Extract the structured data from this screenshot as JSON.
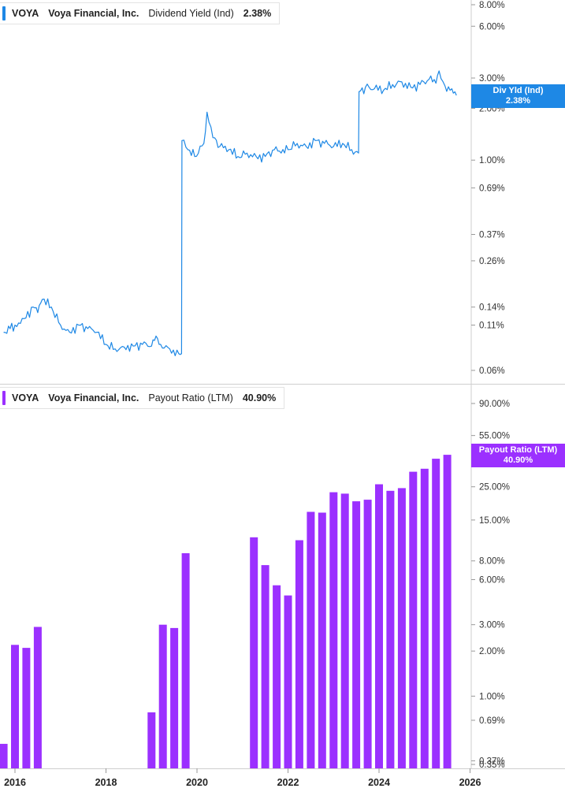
{
  "chart_data": [
    {
      "type": "line",
      "ticker": "VOYA",
      "company": "Voya Financial, Inc.",
      "metric": "Dividend Yield (Ind)",
      "current_value": "2.38%",
      "flag_label": "Div Yld (Ind)",
      "color": "#1e88e5",
      "y_scale": "log",
      "y_ticks": [
        "8.00%",
        "6.00%",
        "3.00%",
        "2.00%",
        "1.00%",
        "0.69%",
        "0.37%",
        "0.26%",
        "0.14%",
        "0.11%",
        "0.06%"
      ],
      "series": [
        {
          "x": [
            2015.75,
            2016.0,
            2016.2,
            2016.4,
            2016.5,
            2016.6,
            2016.8,
            2017.0,
            2017.2,
            2017.4,
            2017.6,
            2017.8,
            2018.0,
            2018.2,
            2018.4,
            2018.6,
            2018.8,
            2019.0,
            2019.1,
            2019.2,
            2019.4,
            2019.6,
            2019.66,
            2019.67,
            2019.8,
            2019.95,
            2020.15,
            2020.22,
            2020.35,
            2020.5,
            2020.7,
            2020.9,
            2021.1,
            2021.3,
            2021.5,
            2021.7,
            2021.85,
            2022.0,
            2022.2,
            2022.4,
            2022.6,
            2022.8,
            2023.0,
            2023.2,
            2023.4,
            2023.55,
            2023.56,
            2023.7,
            2023.9,
            2024.1,
            2024.3,
            2024.5,
            2024.7,
            2024.9,
            2025.1,
            2025.25,
            2025.32,
            2025.45,
            2025.6,
            2025.7
          ],
          "y": [
            0.1,
            0.11,
            0.12,
            0.14,
            0.13,
            0.155,
            0.14,
            0.11,
            0.1,
            0.11,
            0.105,
            0.1,
            0.085,
            0.08,
            0.082,
            0.083,
            0.085,
            0.083,
            0.095,
            0.085,
            0.08,
            0.075,
            0.075,
            1.3,
            1.15,
            1.05,
            1.25,
            1.9,
            1.35,
            1.2,
            1.15,
            1.05,
            1.1,
            1.05,
            1.05,
            1.15,
            1.1,
            1.15,
            1.25,
            1.2,
            1.3,
            1.25,
            1.2,
            1.25,
            1.15,
            1.1,
            2.5,
            2.65,
            2.6,
            2.55,
            2.75,
            2.85,
            2.65,
            2.75,
            2.95,
            2.8,
            3.3,
            2.7,
            2.6,
            2.38
          ]
        }
      ]
    },
    {
      "type": "bar",
      "ticker": "VOYA",
      "company": "Voya Financial, Inc.",
      "metric": "Payout Ratio (LTM)",
      "current_value": "40.90%",
      "flag_label": "Payout Ratio (LTM)",
      "color": "#9b30ff",
      "y_scale": "log",
      "y_ticks": [
        "90.00%",
        "55.00%",
        "25.00%",
        "15.00%",
        "8.00%",
        "6.00%",
        "3.00%",
        "2.00%",
        "1.00%",
        "0.69%",
        "0.37%",
        "0.35%"
      ],
      "x_ticks": [
        "2016",
        "2018",
        "2020",
        "2022",
        "2024",
        "2026"
      ],
      "bars": [
        {
          "x": 2015.75,
          "value": 0.48
        },
        {
          "x": 2016.0,
          "value": 2.2
        },
        {
          "x": 2016.25,
          "value": 2.1
        },
        {
          "x": 2016.5,
          "value": 2.9
        },
        {
          "x": 2019.0,
          "value": 0.78
        },
        {
          "x": 2019.25,
          "value": 3.0
        },
        {
          "x": 2019.5,
          "value": 2.85
        },
        {
          "x": 2019.75,
          "value": 9.0
        },
        {
          "x": 2021.25,
          "value": 11.5
        },
        {
          "x": 2021.5,
          "value": 7.5
        },
        {
          "x": 2021.75,
          "value": 5.5
        },
        {
          "x": 2022.0,
          "value": 4.7
        },
        {
          "x": 2022.25,
          "value": 11.0
        },
        {
          "x": 2022.5,
          "value": 17.0
        },
        {
          "x": 2022.75,
          "value": 16.8
        },
        {
          "x": 2023.0,
          "value": 23.0
        },
        {
          "x": 2023.25,
          "value": 22.5
        },
        {
          "x": 2023.5,
          "value": 20.0
        },
        {
          "x": 2023.75,
          "value": 20.5
        },
        {
          "x": 2024.0,
          "value": 26.0
        },
        {
          "x": 2024.25,
          "value": 23.5
        },
        {
          "x": 2024.5,
          "value": 24.5
        },
        {
          "x": 2024.75,
          "value": 31.5
        },
        {
          "x": 2025.0,
          "value": 33.0
        },
        {
          "x": 2025.25,
          "value": 38.5
        },
        {
          "x": 2025.5,
          "value": 40.9
        }
      ]
    }
  ]
}
